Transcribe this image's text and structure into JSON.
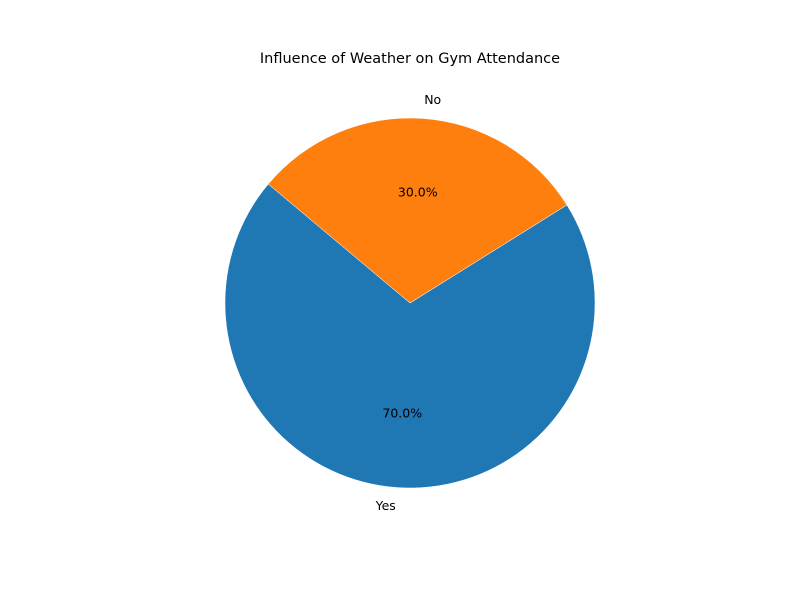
{
  "chart_data": {
    "type": "pie",
    "title": "Influence of Weather on Gym Attendance",
    "categories": [
      "Yes",
      "No"
    ],
    "values": [
      70,
      30
    ],
    "value_labels": [
      "70.0%",
      "30.0%"
    ],
    "colors": [
      "#1f77b4",
      "#ff7f0e"
    ],
    "start_angle_degrees": 140,
    "direction": "counterclockwise",
    "legend": "none"
  }
}
